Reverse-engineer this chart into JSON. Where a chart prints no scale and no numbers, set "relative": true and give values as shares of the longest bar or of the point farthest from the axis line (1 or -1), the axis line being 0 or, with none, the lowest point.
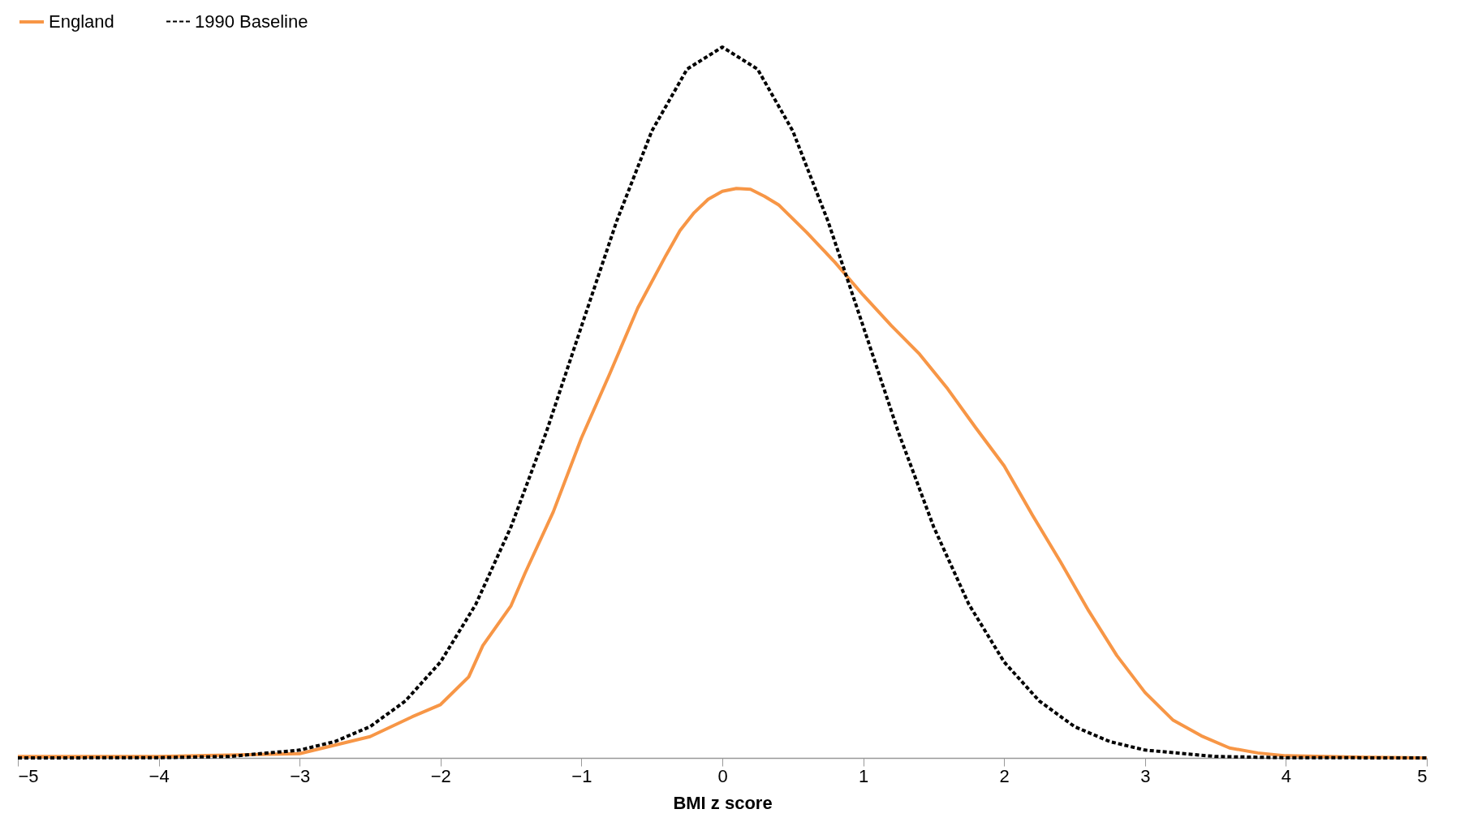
{
  "chart_data": {
    "type": "line",
    "relative": true,
    "xlabel": "BMI z score",
    "xlim": [
      -5,
      5
    ],
    "xticks": [
      -5,
      -4,
      -3,
      -2,
      -1,
      0,
      1,
      2,
      3,
      4,
      5
    ],
    "grid": false,
    "legend": "top left",
    "marker": "none",
    "series": [
      {
        "name": "England",
        "color": "#f79646",
        "line_style": "solid",
        "x": [
          -5,
          -4,
          -3.5,
          -3,
          -2.5,
          -2.2,
          -2,
          -1.8,
          -1.7,
          -1.5,
          -1.4,
          -1.2,
          -1,
          -0.8,
          -0.6,
          -0.4,
          -0.3,
          -0.2,
          -0.1,
          0,
          0.1,
          0.2,
          0.3,
          0.4,
          0.6,
          0.8,
          1,
          1.2,
          1.4,
          1.6,
          1.8,
          2,
          2.2,
          2.4,
          2.6,
          2.8,
          3,
          3.2,
          3.4,
          3.6,
          3.8,
          4,
          4.5,
          5
        ],
        "values": [
          0.002,
          0.002,
          0.004,
          0.006,
          0.03,
          0.058,
          0.075,
          0.114,
          0.158,
          0.214,
          0.26,
          0.346,
          0.45,
          0.54,
          0.633,
          0.707,
          0.742,
          0.767,
          0.786,
          0.797,
          0.801,
          0.8,
          0.79,
          0.778,
          0.739,
          0.697,
          0.651,
          0.608,
          0.568,
          0.519,
          0.464,
          0.411,
          0.342,
          0.276,
          0.207,
          0.144,
          0.092,
          0.053,
          0.031,
          0.014,
          0.007,
          0.003,
          0.001,
          0
        ]
      },
      {
        "name": "1990 Baseline",
        "color": "#000000",
        "line_style": "dashed",
        "x": [
          -5,
          -4,
          -3.5,
          -3,
          -2.75,
          -2.5,
          -2.25,
          -2,
          -1.75,
          -1.5,
          -1.25,
          -1,
          -0.75,
          -0.5,
          -0.25,
          0,
          0.25,
          0.5,
          0.75,
          1,
          1.25,
          1.5,
          1.75,
          2,
          2.25,
          2.5,
          2.75,
          3,
          3.5,
          4,
          5
        ],
        "values": [
          0,
          0.0003,
          0.002,
          0.011,
          0.023,
          0.044,
          0.08,
          0.135,
          0.216,
          0.325,
          0.458,
          0.607,
          0.755,
          0.882,
          0.969,
          1,
          0.969,
          0.882,
          0.755,
          0.607,
          0.458,
          0.325,
          0.216,
          0.135,
          0.08,
          0.044,
          0.023,
          0.011,
          0.002,
          0.0003,
          0
        ]
      }
    ]
  }
}
